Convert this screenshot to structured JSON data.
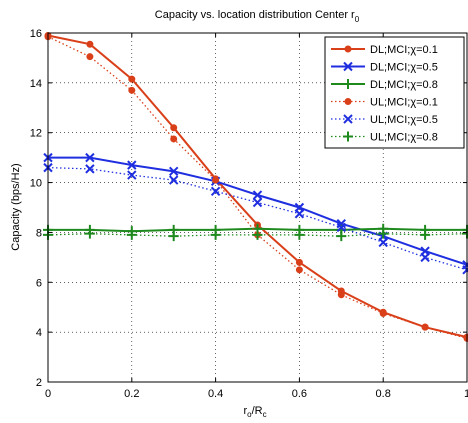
{
  "chart_data": {
    "type": "line",
    "title": "Capacity vs. location distribution Center r",
    "title_sub": "0",
    "xlabel_main": "r",
    "xlabel_sub1": "o",
    "xlabel_mid": "/R",
    "xlabel_sub2": "c",
    "ylabel": "Capacity (bps/Hz)",
    "xlim": [
      0,
      1
    ],
    "ylim": [
      2,
      16
    ],
    "xticks": [
      0,
      0.2,
      0.4,
      0.6,
      0.8,
      1
    ],
    "xtick_labels": [
      "0",
      "0.2",
      "0.4",
      "0.6",
      "0.8",
      "1"
    ],
    "yticks": [
      2,
      4,
      6,
      8,
      10,
      12,
      14,
      16
    ],
    "ytick_labels": [
      "2",
      "4",
      "6",
      "8",
      "10",
      "12",
      "14",
      "16"
    ],
    "grid": true,
    "legend_position": "top-right",
    "x": [
      0,
      0.1,
      0.2,
      0.3,
      0.4,
      0.5,
      0.6,
      0.7,
      0.8,
      0.9,
      1
    ],
    "series": [
      {
        "name": "DL;MCI;χ=0.1",
        "color": "#d9401a",
        "line": "solid",
        "marker": "dot",
        "values": [
          15.9,
          15.55,
          14.15,
          12.2,
          10.15,
          8.3,
          6.8,
          5.65,
          4.8,
          4.2,
          3.8
        ]
      },
      {
        "name": "DL;MCI;χ=0.5",
        "color": "#1f2fe0",
        "line": "solid",
        "marker": "x",
        "values": [
          11.0,
          11.0,
          10.7,
          10.45,
          10.05,
          9.5,
          9.0,
          8.35,
          7.85,
          7.25,
          6.7
        ]
      },
      {
        "name": "DL;MCI;χ=0.8",
        "color": "#1e8a1e",
        "line": "solid",
        "marker": "plus",
        "values": [
          8.1,
          8.1,
          8.05,
          8.1,
          8.1,
          8.15,
          8.1,
          8.1,
          8.15,
          8.1,
          8.1
        ]
      },
      {
        "name": "UL;MCI;χ=0.1",
        "color": "#d9401a",
        "line": "dotted",
        "marker": "dot",
        "values": [
          15.85,
          15.05,
          13.7,
          11.75,
          10.1,
          7.9,
          6.5,
          5.5,
          4.75,
          4.2,
          3.75
        ]
      },
      {
        "name": "UL;MCI;χ=0.5",
        "color": "#1f2fe0",
        "line": "dotted",
        "marker": "x",
        "values": [
          10.6,
          10.55,
          10.3,
          10.1,
          9.65,
          9.2,
          8.75,
          8.2,
          7.6,
          7.0,
          6.5
        ]
      },
      {
        "name": "UL;MCI;χ=0.8",
        "color": "#1e8a1e",
        "line": "dotted",
        "marker": "plus",
        "values": [
          7.9,
          7.95,
          7.9,
          7.85,
          7.9,
          7.9,
          7.9,
          7.85,
          7.95,
          7.9,
          7.95
        ]
      }
    ]
  }
}
